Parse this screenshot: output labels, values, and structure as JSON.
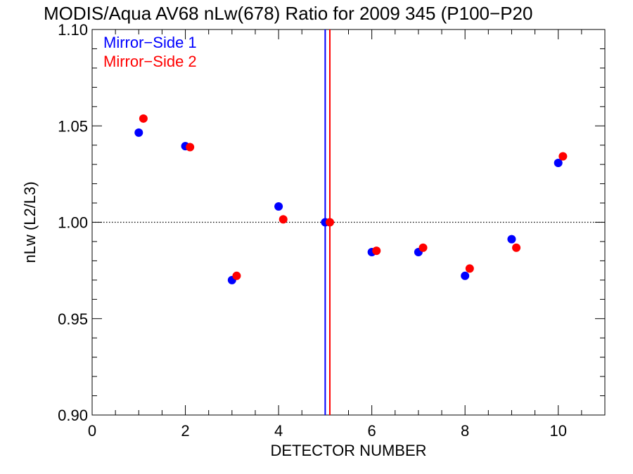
{
  "chart_data": {
    "type": "scatter",
    "title": "MODIS/Aqua AV68 nLw(678) Ratio for 2009 345 (P100−P20",
    "xlabel": "DETECTOR NUMBER",
    "ylabel": "nLw (L2/L3)",
    "xlim": [
      0,
      11
    ],
    "ylim": [
      0.9,
      1.1
    ],
    "x_ticks": [
      0,
      2,
      4,
      6,
      8,
      10
    ],
    "x_tick_labels": [
      "0",
      "2",
      "4",
      "6",
      "8",
      "10"
    ],
    "y_ticks": [
      0.9,
      0.95,
      1.0,
      1.05,
      1.1
    ],
    "y_tick_labels": [
      "0.90",
      "0.95",
      "1.00",
      "1.05",
      "1.10"
    ],
    "reference_line_y": 1.0,
    "grid": false,
    "legend_position": "top-left",
    "series": [
      {
        "name": "Mirror−Side 1",
        "color": "#0000ff",
        "x": [
          1,
          2,
          3,
          4,
          5,
          6,
          7,
          8,
          9,
          10
        ],
        "y": [
          1.0465,
          1.0395,
          0.97,
          1.0082,
          1.0,
          0.9845,
          0.9845,
          0.9722,
          0.9912,
          1.0308
        ]
      },
      {
        "name": "Mirror−Side 2",
        "color": "#ff0000",
        "x": [
          1.1,
          2.1,
          3.1,
          4.1,
          5.1,
          6.1,
          7.1,
          8.1,
          9.1,
          10.1
        ],
        "y": [
          1.0538,
          1.039,
          0.9722,
          1.0015,
          1.0,
          0.9852,
          0.9868,
          0.976,
          0.9868,
          1.0342
        ]
      }
    ],
    "vertical_lines": [
      {
        "x": 5,
        "color": "#0000ff"
      },
      {
        "x": 5.1,
        "color": "#ff0000"
      }
    ]
  }
}
